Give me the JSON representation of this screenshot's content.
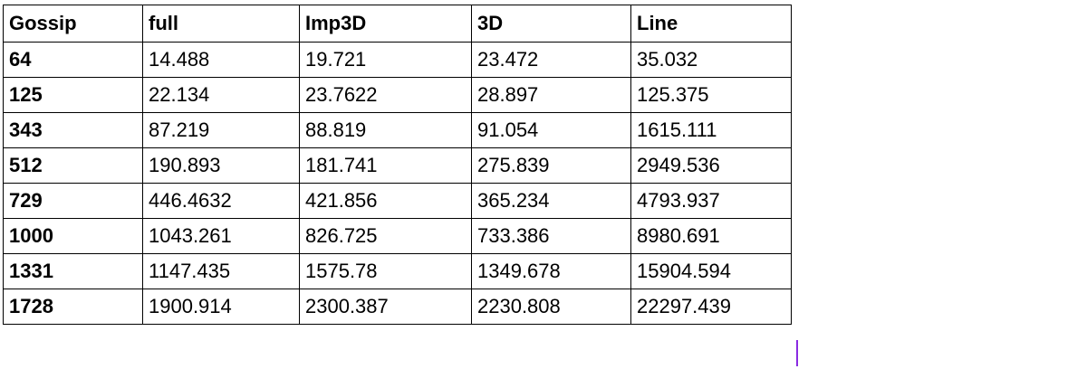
{
  "table": {
    "headers": [
      "Gossip",
      "full",
      "Imp3D",
      "3D",
      "Line"
    ],
    "rows": [
      [
        "64",
        "14.488",
        "19.721",
        "23.472",
        "35.032"
      ],
      [
        "125",
        "22.134",
        "23.7622",
        "28.897",
        "125.375"
      ],
      [
        "343",
        "87.219",
        "88.819",
        "91.054",
        "1615.111"
      ],
      [
        "512",
        "190.893",
        "181.741",
        "275.839",
        "2949.536"
      ],
      [
        "729",
        "446.4632",
        "421.856",
        "365.234",
        "4793.937"
      ],
      [
        "1000",
        "1043.261",
        "826.725",
        "733.386",
        "8980.691"
      ],
      [
        "1331",
        "1147.435",
        "1575.78",
        "1349.678",
        "15904.594"
      ],
      [
        "1728",
        "1900.914",
        "2300.387",
        "2230.808",
        "22297.439"
      ]
    ]
  },
  "colors": {
    "border": "#000000",
    "text": "#000000",
    "cursor": "#8a2be2"
  }
}
